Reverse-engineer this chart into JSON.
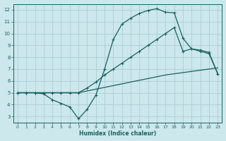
{
  "xlabel": "Humidex (Indice chaleur)",
  "bg_color": "#cce8ec",
  "grid_color": "#aacdd4",
  "line_color": "#1a6060",
  "xlim": [
    -0.5,
    23.5
  ],
  "ylim": [
    2.5,
    12.5
  ],
  "xticks": [
    0,
    1,
    2,
    3,
    4,
    5,
    6,
    7,
    8,
    9,
    10,
    11,
    12,
    13,
    14,
    15,
    16,
    17,
    18,
    19,
    20,
    21,
    22,
    23
  ],
  "yticks": [
    3,
    4,
    5,
    6,
    7,
    8,
    9,
    10,
    11,
    12
  ],
  "line1_x": [
    0,
    1,
    2,
    3,
    4,
    5,
    6,
    7,
    8,
    9,
    10,
    11,
    12,
    13,
    14,
    15,
    16,
    17,
    18,
    19,
    20,
    21,
    22,
    23
  ],
  "line1_y": [
    5.0,
    5.0,
    5.0,
    5.0,
    5.0,
    5.0,
    5.0,
    5.0,
    5.15,
    5.3,
    5.45,
    5.6,
    5.75,
    5.9,
    6.05,
    6.2,
    6.35,
    6.5,
    6.6,
    6.7,
    6.8,
    6.9,
    7.0,
    7.1
  ],
  "line2_x": [
    0,
    1,
    2,
    3,
    4,
    5,
    6,
    7,
    8,
    9,
    10,
    11,
    12,
    13,
    14,
    15,
    16,
    17,
    18,
    19,
    20,
    21,
    22,
    23
  ],
  "line2_y": [
    5.0,
    5.0,
    5.0,
    5.0,
    5.0,
    5.0,
    5.0,
    5.0,
    5.4,
    5.9,
    6.5,
    7.0,
    7.5,
    8.0,
    8.5,
    9.0,
    9.5,
    10.0,
    10.5,
    8.5,
    8.7,
    8.6,
    8.4,
    6.6
  ],
  "line3_x": [
    0,
    1,
    2,
    3,
    4,
    5,
    6,
    7,
    8,
    9,
    10,
    11,
    12,
    13,
    14,
    15,
    16,
    17,
    18,
    19,
    20,
    21,
    22,
    23
  ],
  "line3_y": [
    5.0,
    5.0,
    5.0,
    4.9,
    4.4,
    4.1,
    3.8,
    2.8,
    3.6,
    4.8,
    7.0,
    9.5,
    10.8,
    11.3,
    11.7,
    11.95,
    12.1,
    11.8,
    11.75,
    9.6,
    8.7,
    8.5,
    8.3,
    6.6
  ]
}
